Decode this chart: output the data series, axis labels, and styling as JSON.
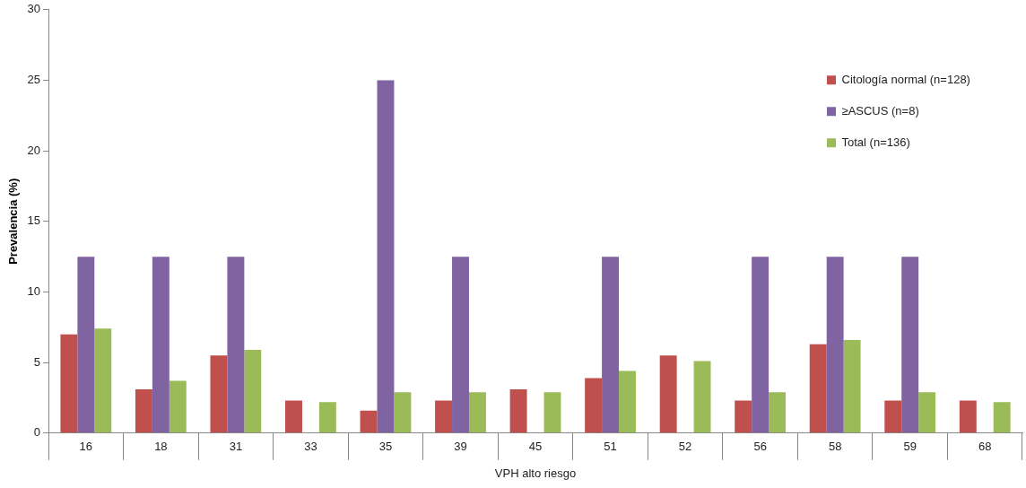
{
  "chart_data": {
    "type": "bar",
    "categories": [
      "16",
      "18",
      "31",
      "33",
      "35",
      "39",
      "45",
      "51",
      "52",
      "56",
      "58",
      "59",
      "68"
    ],
    "series": [
      {
        "name": "Citología normal (n=128)",
        "color": "#c0504d",
        "values": [
          7.0,
          3.1,
          5.5,
          2.3,
          1.6,
          2.3,
          3.1,
          3.9,
          5.5,
          2.3,
          6.3,
          2.3,
          2.3
        ]
      },
      {
        "name": "≥ASCUS (n=8)",
        "color": "#8064a2",
        "values": [
          12.5,
          12.5,
          12.5,
          null,
          25,
          12.5,
          null,
          12.5,
          null,
          12.5,
          12.5,
          12.5,
          null
        ]
      },
      {
        "name": "Total (n=136)",
        "color": "#9bbb59",
        "values": [
          7.4,
          3.7,
          5.9,
          2.2,
          2.9,
          2.9,
          2.9,
          4.4,
          5.1,
          2.9,
          6.6,
          2.9,
          2.2
        ]
      }
    ],
    "xlabel": "VPH alto riesgo",
    "ylabel": "Prevalencia (%)",
    "ylim": [
      0,
      30
    ],
    "yticks": [
      0,
      5,
      10,
      15,
      20,
      25,
      30
    ],
    "grid": false,
    "legend": "top right"
  }
}
